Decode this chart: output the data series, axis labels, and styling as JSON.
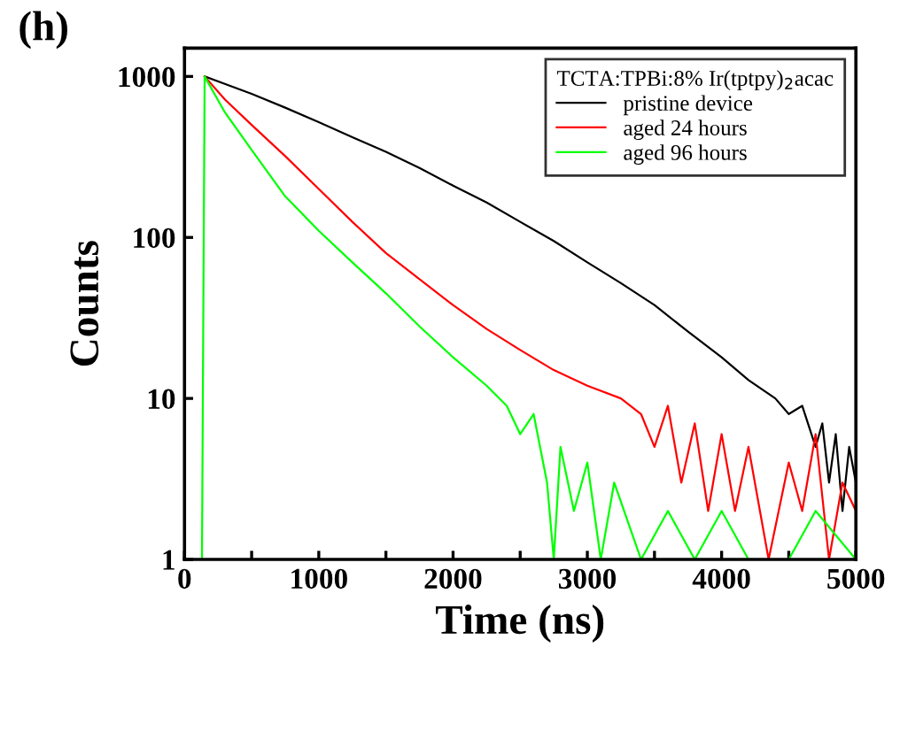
{
  "chart_data": {
    "type": "line",
    "title": "(h)",
    "xlabel": "Time (ns)",
    "ylabel": "Counts",
    "legend_title": "TCTA:TPBi:8% Ir(tptpy)$_{2}$acac",
    "log": "y",
    "xlim": [
      0,
      5000
    ],
    "ylim": [
      1,
      1500
    ],
    "xticks": [
      0,
      {
        "value": 500,
        "label": null
      },
      1000,
      {
        "value": 1500,
        "label": null
      },
      2000,
      {
        "value": 2500,
        "label": null
      },
      3000,
      {
        "value": 3500,
        "label": null
      },
      4000,
      {
        "value": 4500,
        "label": null
      },
      5000
    ],
    "yticks": [
      1,
      10,
      100,
      1000
    ],
    "grid": false,
    "legend": "top right",
    "marker": "none",
    "line_style": "solid",
    "series": [
      {
        "name": "pristine device",
        "color": "#000000",
        "x": [
          150,
          300,
          500,
          750,
          1000,
          1250,
          1500,
          1750,
          2000,
          2250,
          2500,
          2750,
          3000,
          3250,
          3500,
          3750,
          4000,
          4200,
          4400,
          4500,
          4600,
          4700,
          4750,
          4800,
          4850,
          4900,
          4950,
          5000
        ],
        "values": [
          1000,
          900,
          780,
          640,
          520,
          420,
          340,
          270,
          210,
          165,
          125,
          95,
          70,
          52,
          38,
          26,
          18,
          13,
          10,
          8,
          9,
          5,
          7,
          3,
          6,
          2,
          5,
          3
        ]
      },
      {
        "name": "aged 24 hours",
        "color": "#ff0000",
        "x": [
          150,
          300,
          500,
          750,
          1000,
          1250,
          1500,
          1750,
          2000,
          2250,
          2500,
          2750,
          3000,
          3250,
          3400,
          3500,
          3600,
          3700,
          3800,
          3900,
          4000,
          4100,
          4200,
          4350,
          4500,
          4600,
          4700,
          4800,
          4900,
          5000
        ],
        "values": [
          1000,
          720,
          500,
          320,
          200,
          125,
          80,
          55,
          38,
          27,
          20,
          15,
          12,
          10,
          8,
          5,
          9,
          3,
          7,
          2,
          6,
          2,
          5,
          1,
          4,
          2,
          6,
          1,
          3,
          2
        ]
      },
      {
        "name": "aged 96 hours",
        "color": "#00ff00",
        "x": [
          130,
          150,
          300,
          500,
          750,
          1000,
          1250,
          1500,
          1750,
          2000,
          2250,
          2400,
          2500,
          2600,
          2700,
          2750,
          2800,
          2900,
          3000,
          3100,
          3200,
          3400,
          3600,
          3800,
          4000,
          4200,
          4500,
          4700,
          5000
        ],
        "values": [
          1,
          1000,
          600,
          350,
          180,
          110,
          70,
          45,
          28,
          18,
          12,
          9,
          6,
          8,
          3,
          1,
          5,
          2,
          4,
          1,
          3,
          1,
          2,
          1,
          2,
          1,
          1,
          2,
          1
        ]
      }
    ]
  }
}
